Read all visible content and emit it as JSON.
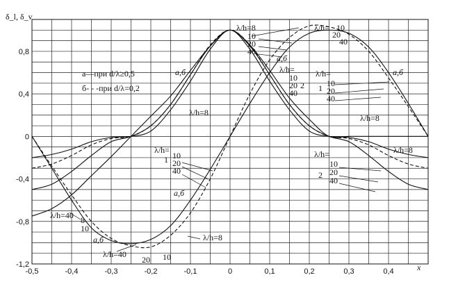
{
  "chart_data": {
    "type": "line",
    "ylabel": "δ_l, δ_v",
    "xlabel": "x",
    "xlim": [
      -0.5,
      0.5
    ],
    "ylim": [
      -1.2,
      1.1
    ],
    "xticks": [
      "-0,5",
      "-0,4",
      "-0,3",
      "-0,2",
      "-0,1",
      "0",
      "0,1",
      "0,2",
      "0,3",
      "0,4"
    ],
    "yticks": [
      "0,8",
      "0,4",
      "0",
      "-0,4",
      "-0,8",
      "-1,2"
    ],
    "legend": {
      "line1": "а—при d/λ≥0,5",
      "line2": "б- - -при d/λ=0,2"
    },
    "annotations": {
      "lh_eq_8": "λ/h=8",
      "lh_eq_40": "λ/h=40",
      "lh_eq": "λ/h=",
      "n10": "10",
      "n20": "20",
      "n40": "40",
      "n8": "8",
      "ab": "а,б",
      "one": "1",
      "two": "2"
    },
    "series": [
      {
        "style": "solid",
        "x": [
          -0.5,
          -0.45,
          -0.4,
          -0.35,
          -0.3,
          -0.25,
          -0.2,
          -0.15,
          -0.1,
          -0.05,
          0,
          0.05,
          0.1,
          0.15,
          0.2,
          0.25,
          0.3,
          0.35,
          0.4,
          0.45,
          0.5
        ],
        "y": [
          -0.75,
          -0.68,
          -0.55,
          -0.37,
          -0.19,
          0,
          0.19,
          0.38,
          0.62,
          0.85,
          1.0,
          0.86,
          0.62,
          0.36,
          0.16,
          0,
          0,
          0,
          0,
          0,
          0
        ]
      },
      {
        "style": "solid",
        "x": [
          -0.5,
          -0.45,
          -0.4,
          -0.35,
          -0.3,
          -0.25,
          -0.2,
          -0.15,
          -0.1,
          -0.05,
          0,
          0.05,
          0.1,
          0.15,
          0.2,
          0.25,
          0.3,
          0.35,
          0.4,
          0.45,
          0.5
        ],
        "y": [
          0,
          -0.3,
          -0.6,
          -0.86,
          -0.98,
          -1.01,
          -0.97,
          -0.84,
          -0.6,
          -0.31,
          0,
          0.31,
          0.6,
          0.84,
          0.97,
          1.0,
          0.97,
          0.84,
          0.6,
          0.31,
          0
        ]
      },
      {
        "style": "dashed",
        "x": [
          -0.5,
          -0.45,
          -0.4,
          -0.35,
          -0.3,
          -0.25,
          -0.2,
          -0.15,
          -0.1,
          -0.05,
          0,
          0.05,
          0.1,
          0.15,
          0.2,
          0.25,
          0.3,
          0.35,
          0.4,
          0.45,
          0.5
        ],
        "y": [
          0,
          -0.28,
          -0.55,
          -0.8,
          -0.96,
          -1.03,
          -1.04,
          -0.93,
          -0.72,
          -0.4,
          0,
          0.4,
          0.72,
          0.93,
          1.04,
          1.03,
          0.96,
          0.8,
          0.55,
          0.28,
          0
        ]
      },
      {
        "style": "solid",
        "x": [
          -0.5,
          -0.45,
          -0.4,
          -0.35,
          -0.3,
          -0.25,
          -0.2,
          -0.15,
          -0.1,
          -0.05,
          0,
          0.05,
          0.1,
          0.15,
          0.2,
          0.25,
          0.3,
          0.35,
          0.4,
          0.45,
          0.5
        ],
        "y": [
          -0.2,
          -0.17,
          -0.12,
          -0.05,
          -0.01,
          0,
          0.05,
          0.25,
          0.52,
          0.82,
          1.0,
          0.82,
          0.52,
          0.25,
          0.05,
          0,
          -0.01,
          -0.05,
          -0.12,
          -0.17,
          -0.2
        ]
      },
      {
        "style": "dashed",
        "x": [
          -0.5,
          -0.45,
          -0.4,
          -0.35,
          -0.3,
          -0.25,
          -0.2,
          -0.15,
          -0.1,
          -0.05,
          0,
          0.05,
          0.1,
          0.15,
          0.2,
          0.25,
          0.3,
          0.35,
          0.4,
          0.45,
          0.5
        ],
        "y": [
          -0.3,
          -0.26,
          -0.18,
          -0.08,
          -0.02,
          0,
          0.1,
          0.3,
          0.58,
          0.86,
          1.0,
          0.86,
          0.58,
          0.3,
          0.1,
          0,
          -0.02,
          -0.08,
          -0.18,
          -0.26,
          -0.3
        ]
      },
      {
        "style": "solid",
        "x": [
          -0.5,
          -0.45,
          -0.4,
          -0.35,
          -0.3,
          -0.25,
          -0.2,
          -0.15,
          -0.1,
          -0.05,
          0,
          0.05,
          0.1,
          0.15,
          0.2,
          0.25,
          0.3,
          0.35,
          0.4,
          0.45,
          0.5
        ],
        "y": [
          -0.5,
          -0.45,
          -0.33,
          -0.18,
          -0.05,
          0,
          0.1,
          0.3,
          0.58,
          0.85,
          1.0,
          0.85,
          0.58,
          0.3,
          0.1,
          0,
          -0.05,
          -0.18,
          -0.33,
          -0.45,
          -0.5
        ]
      }
    ]
  }
}
